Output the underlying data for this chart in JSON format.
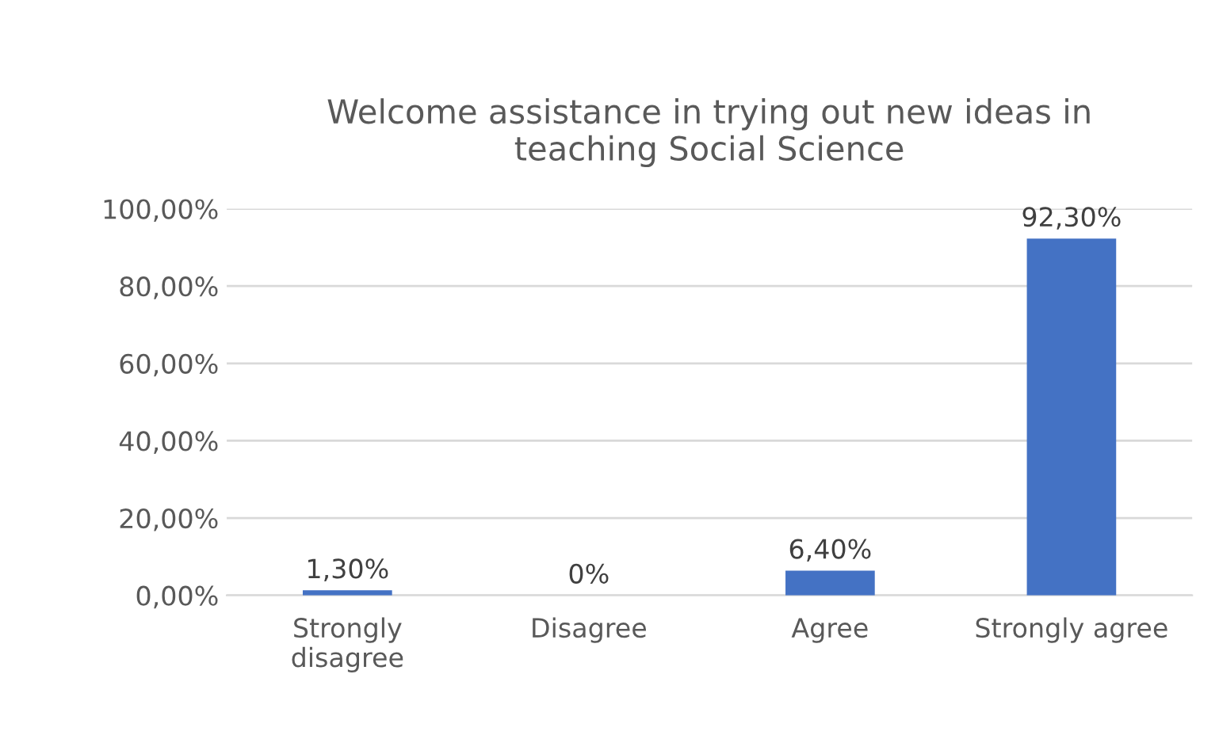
{
  "chart_data": {
    "type": "bar",
    "title": "Welcome assistance in trying out new ideas in\nteaching Social Science",
    "categories": [
      "Strongly\ndisagree",
      "Disagree",
      "Agree",
      "Strongly agree"
    ],
    "values": [
      1.3,
      0,
      6.4,
      92.3
    ],
    "value_labels": [
      "1,30%",
      "0%",
      "6,40%",
      "92,30%"
    ],
    "color": "#4472c4",
    "ylim": [
      0,
      100
    ],
    "yticks": [
      {
        "value": 0,
        "label": "0,00%"
      },
      {
        "value": 20,
        "label": "20,00%"
      },
      {
        "value": 40,
        "label": "40,00%"
      },
      {
        "value": 60,
        "label": "60,00%"
      },
      {
        "value": 80,
        "label": "80,00%"
      },
      {
        "value": 100,
        "label": "100,00%"
      }
    ],
    "grid": "y"
  }
}
